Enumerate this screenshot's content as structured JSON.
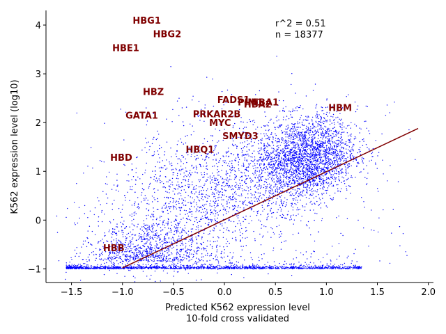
{
  "chart_data": {
    "type": "scatter",
    "title": "",
    "xlabel_line1": "Predicted K562 expression level",
    "xlabel_line2": "10-fold cross validated",
    "ylabel": "K562 expression level (log10)",
    "xlim": [
      -1.75,
      2.05
    ],
    "ylim": [
      -1.28,
      4.3
    ],
    "x_ticks": [
      -1.5,
      -1.0,
      -0.5,
      0.0,
      0.5,
      1.0,
      1.5,
      2.0
    ],
    "x_tick_labels": [
      "−1.5",
      "−1.0",
      "−0.5",
      "0.0",
      "0.5",
      "1.0",
      "1.5",
      "2.0"
    ],
    "y_ticks": [
      -1,
      0,
      1,
      2,
      3,
      4
    ],
    "y_tick_labels": [
      "−1",
      "0",
      "1",
      "2",
      "3",
      "4"
    ],
    "stats": {
      "r2": "r^2 = 0.51",
      "n": "n = 18377"
    },
    "point_color": "#0000ff",
    "label_color": "#800000",
    "fit_line": {
      "x": [
        -1.0,
        1.9
      ],
      "y": [
        -0.98,
        1.88
      ]
    },
    "highlighted_genes": [
      {
        "name": "HBG1",
        "x": -0.9,
        "y": 4.1
      },
      {
        "name": "HBG2",
        "x": -0.7,
        "y": 3.82
      },
      {
        "name": "HBE1",
        "x": -1.1,
        "y": 3.54
      },
      {
        "name": "HBZ",
        "x": -0.8,
        "y": 2.64
      },
      {
        "name": "GATA1",
        "x": -0.97,
        "y": 2.15
      },
      {
        "name": "HBD",
        "x": -1.12,
        "y": 1.29
      },
      {
        "name": "HBB",
        "x": -1.19,
        "y": -0.57
      },
      {
        "name": "HBQ1",
        "x": -0.38,
        "y": 1.45
      },
      {
        "name": "PRKAR2B",
        "x": -0.31,
        "y": 2.18
      },
      {
        "name": "MYC",
        "x": -0.15,
        "y": 2.0
      },
      {
        "name": "FADS1",
        "x": -0.07,
        "y": 2.47
      },
      {
        "name": "PIM1",
        "x": 0.13,
        "y": 2.42
      },
      {
        "name": "HBA2",
        "x": 0.19,
        "y": 2.38
      },
      {
        "name": "HBA1",
        "x": 0.26,
        "y": 2.42
      },
      {
        "name": "SMYD3",
        "x": -0.02,
        "y": 1.73
      },
      {
        "name": "HBM",
        "x": 1.02,
        "y": 2.31
      }
    ]
  }
}
